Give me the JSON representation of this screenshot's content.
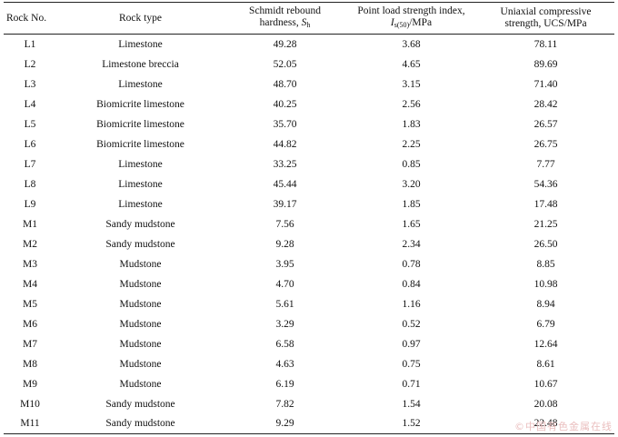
{
  "table": {
    "headers": {
      "rock_no": "Rock No.",
      "rock_type": "Rock type",
      "schmidt_line1": "Schmidt rebound",
      "schmidt_line2_prefix": "hardness, ",
      "schmidt_symbol": "S",
      "schmidt_subscript": "h",
      "pls_line1": "Point load strength index,",
      "pls_symbol": "I",
      "pls_subscript": "s(50)",
      "pls_unit": "/MPa",
      "ucs_line1": "Uniaxial compressive",
      "ucs_line2": "strength, UCS/MPa"
    },
    "rows": [
      {
        "no": "L1",
        "type": "Limestone",
        "sh": "49.28",
        "is50": "3.68",
        "ucs": "78.11"
      },
      {
        "no": "L2",
        "type": "Limestone breccia",
        "sh": "52.05",
        "is50": "4.65",
        "ucs": "89.69"
      },
      {
        "no": "L3",
        "type": "Limestone",
        "sh": "48.70",
        "is50": "3.15",
        "ucs": "71.40"
      },
      {
        "no": "L4",
        "type": "Biomicrite limestone",
        "sh": "40.25",
        "is50": "2.56",
        "ucs": "28.42"
      },
      {
        "no": "L5",
        "type": "Biomicrite limestone",
        "sh": "35.70",
        "is50": "1.83",
        "ucs": "26.57"
      },
      {
        "no": "L6",
        "type": "Biomicrite limestone",
        "sh": "44.82",
        "is50": "2.25",
        "ucs": "26.75"
      },
      {
        "no": "L7",
        "type": "Limestone",
        "sh": "33.25",
        "is50": "0.85",
        "ucs": "7.77"
      },
      {
        "no": "L8",
        "type": "Limestone",
        "sh": "45.44",
        "is50": "3.20",
        "ucs": "54.36"
      },
      {
        "no": "L9",
        "type": "Limestone",
        "sh": "39.17",
        "is50": "1.85",
        "ucs": "17.48"
      },
      {
        "no": "M1",
        "type": "Sandy mudstone",
        "sh": "7.56",
        "is50": "1.65",
        "ucs": "21.25"
      },
      {
        "no": "M2",
        "type": "Sandy mudstone",
        "sh": "9.28",
        "is50": "2.34",
        "ucs": "26.50"
      },
      {
        "no": "M3",
        "type": "Mudstone",
        "sh": "3.95",
        "is50": "0.78",
        "ucs": "8.85"
      },
      {
        "no": "M4",
        "type": "Mudstone",
        "sh": "4.70",
        "is50": "0.84",
        "ucs": "10.98"
      },
      {
        "no": "M5",
        "type": "Mudstone",
        "sh": "5.61",
        "is50": "1.16",
        "ucs": "8.94"
      },
      {
        "no": "M6",
        "type": "Mudstone",
        "sh": "3.29",
        "is50": "0.52",
        "ucs": "6.79"
      },
      {
        "no": "M7",
        "type": "Mudstone",
        "sh": "6.58",
        "is50": "0.97",
        "ucs": "12.64"
      },
      {
        "no": "M8",
        "type": "Mudstone",
        "sh": "4.63",
        "is50": "0.75",
        "ucs": "8.61"
      },
      {
        "no": "M9",
        "type": "Mudstone",
        "sh": "6.19",
        "is50": "0.71",
        "ucs": "10.67"
      },
      {
        "no": "M10",
        "type": "Sandy mudstone",
        "sh": "7.82",
        "is50": "1.54",
        "ucs": "20.08"
      },
      {
        "no": "M11",
        "type": "Sandy mudstone",
        "sh": "9.29",
        "is50": "1.52",
        "ucs": "22.48"
      }
    ]
  },
  "watermark": {
    "text": "©中国有色金属在线",
    "color": "#e8b8b8"
  }
}
